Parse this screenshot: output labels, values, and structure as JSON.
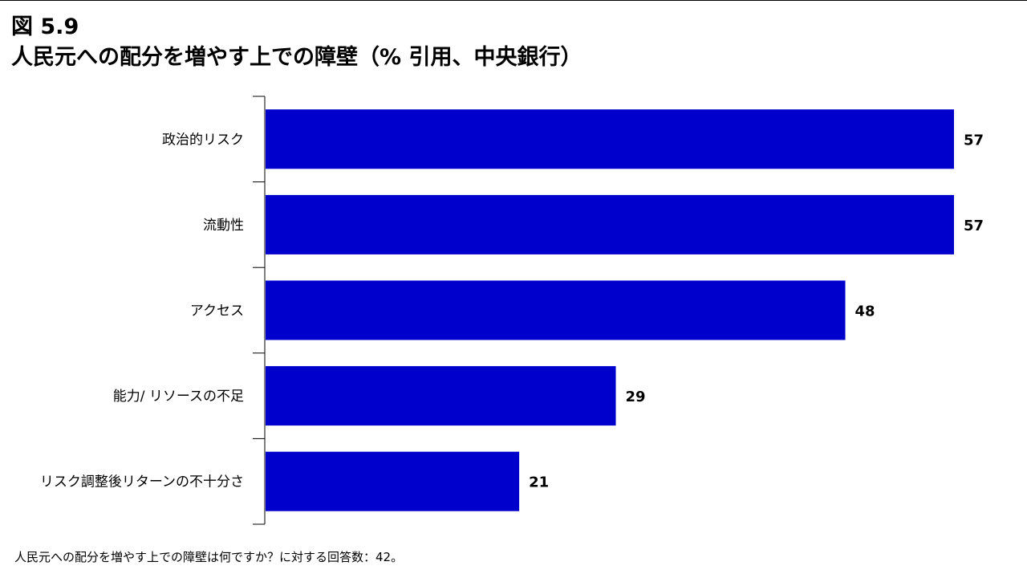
{
  "header": {
    "figure_label": "図 5.9",
    "title": "人民元への配分を増やす上での障壁（% 引用、中央銀行）"
  },
  "footnote": "人民元への配分を増やす上での障壁は何ですか？に対する回答数：42。",
  "chart_data": {
    "type": "bar",
    "orientation": "horizontal",
    "title": "人民元への配分を増やす上での障壁（% 引用、中央銀行）",
    "categories": [
      "政治的リスク",
      "流動性",
      "アクセス",
      "能力/ リソースの不足",
      "リスク調整後リターンの不十分さ"
    ],
    "values": [
      57,
      57,
      48,
      29,
      21
    ],
    "value_labels": [
      "57",
      "57",
      "48",
      "29",
      "21"
    ],
    "xlim": [
      0,
      57
    ],
    "bar_color": "#0000CC",
    "grid": false,
    "legend": "none"
  }
}
